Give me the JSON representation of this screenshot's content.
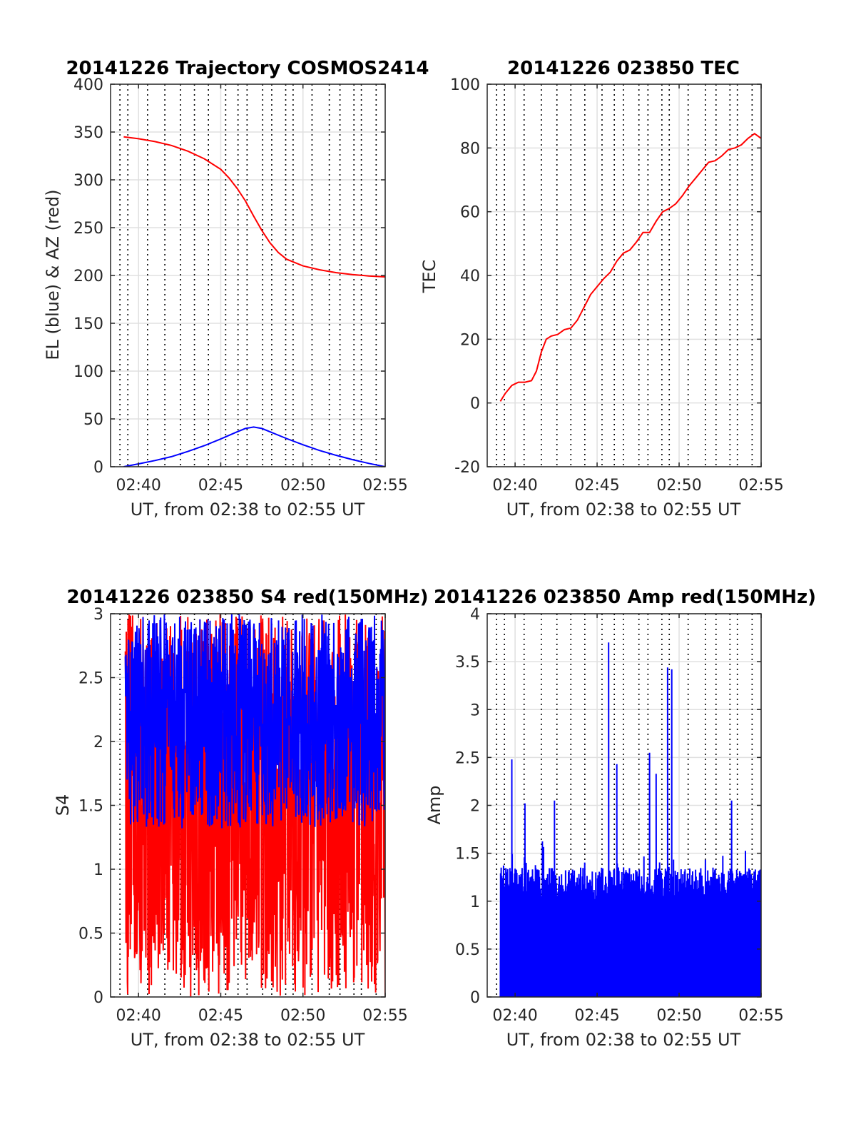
{
  "chart_data": [
    {
      "id": "traj",
      "type": "line",
      "title": "20141226 Trajectory COSMOS2414",
      "xlabel": "UT, from 02:38 to 02:55 UT",
      "ylabel": "EL (blue) & AZ (red)",
      "xlim": [
        38.3,
        55
      ],
      "ylim": [
        0,
        400
      ],
      "xticks": [
        40,
        45,
        50,
        55
      ],
      "xtick_labels": [
        "02:40",
        "02:45",
        "02:50",
        "02:55"
      ],
      "yticks": [
        0,
        50,
        100,
        150,
        200,
        250,
        300,
        350,
        400
      ],
      "ytick_labels": [
        "0",
        "50",
        "100",
        "150",
        "200",
        "250",
        "300",
        "350",
        "400"
      ],
      "grid": true,
      "series": [
        {
          "color": "#ff0000",
          "x": [
            39.1,
            40,
            41,
            42,
            43,
            44,
            45,
            45.5,
            46,
            46.5,
            47,
            47.5,
            48,
            48.5,
            49,
            50,
            51,
            52,
            53,
            54,
            55
          ],
          "y": [
            345,
            343,
            340,
            336,
            330,
            322,
            311,
            302,
            291,
            278,
            262,
            247,
            234,
            224,
            217,
            210,
            206,
            203,
            201,
            199.5,
            198.5
          ]
        },
        {
          "color": "#0000ff",
          "x": [
            39.1,
            40,
            41,
            42,
            43,
            44,
            45,
            46,
            46.5,
            47,
            47.5,
            48,
            49,
            50,
            51,
            52,
            53,
            54,
            55
          ],
          "y": [
            0,
            3,
            6.5,
            10.5,
            16,
            22,
            29,
            36.5,
            40,
            41.5,
            40,
            36.5,
            29.5,
            23,
            17,
            12,
            7.5,
            3.5,
            0
          ]
        }
      ]
    },
    {
      "id": "tec",
      "type": "line",
      "title": "20141226 023850 TEC",
      "xlabel": "UT, from 02:38 to 02:55 UT",
      "ylabel": "TEC",
      "xlim": [
        38.3,
        55
      ],
      "ylim": [
        -20,
        100
      ],
      "xticks": [
        40,
        45,
        50,
        55
      ],
      "xtick_labels": [
        "02:40",
        "02:45",
        "02:50",
        "02:55"
      ],
      "yticks": [
        -20,
        0,
        20,
        40,
        60,
        80,
        100
      ],
      "ytick_labels": [
        "-20",
        "0",
        "20",
        "40",
        "60",
        "80",
        "100"
      ],
      "grid": true,
      "series": [
        {
          "color": "#ff0000",
          "x": [
            39.1,
            39.4,
            39.8,
            40.2,
            40.6,
            41.0,
            41.3,
            41.6,
            41.9,
            42.2,
            42.6,
            43.0,
            43.4,
            43.8,
            44.2,
            44.6,
            45.0,
            45.4,
            45.8,
            46.2,
            46.6,
            47.0,
            47.4,
            47.8,
            48.2,
            48.6,
            49.0,
            49.4,
            49.8,
            50.2,
            50.6,
            51.0,
            51.4,
            51.8,
            52.2,
            52.6,
            53.0,
            53.4,
            53.8,
            54.2,
            54.6,
            55.0
          ],
          "y": [
            0.5,
            3,
            5.5,
            6.5,
            6.5,
            7,
            10,
            16,
            20,
            21,
            21.5,
            23,
            23.5,
            26,
            30,
            34,
            36.5,
            39,
            41,
            44.5,
            47,
            48,
            50.5,
            53.5,
            53.5,
            57,
            60,
            61,
            62.5,
            65,
            68,
            70.5,
            73,
            75.5,
            76,
            77.5,
            79.5,
            80,
            81,
            83,
            84.5,
            83
          ]
        }
      ]
    },
    {
      "id": "s4",
      "type": "line",
      "title": "20141226 023850 S4 red(150MHz)",
      "xlabel": "UT, from 02:38 to 02:55 UT",
      "ylabel": "S4",
      "xlim": [
        38.3,
        55
      ],
      "ylim": [
        0,
        3
      ],
      "xticks": [
        40,
        45,
        50,
        55
      ],
      "xtick_labels": [
        "02:40",
        "02:45",
        "02:50",
        "02:55"
      ],
      "yticks": [
        0,
        0.5,
        1,
        1.5,
        2,
        2.5,
        3
      ],
      "ytick_labels": [
        "0",
        "0.5",
        "1",
        "1.5",
        "2",
        "2.5",
        "3"
      ],
      "grid": true,
      "series": [
        {
          "color": "#ff0000",
          "x_range": [
            39.2,
            55
          ],
          "y_range": [
            0,
            3
          ],
          "shape": "noise"
        },
        {
          "color": "#0000ff",
          "x_range": [
            39.2,
            55
          ],
          "y_range": [
            0.9,
            3
          ],
          "shape": "noise"
        }
      ]
    },
    {
      "id": "amp",
      "type": "line",
      "title": "20141226 023850 Amp red(150MHz)",
      "xlabel": "UT, from 02:38 to 02:55 UT",
      "ylabel": "Amp",
      "xlim": [
        38.3,
        55
      ],
      "ylim": [
        0,
        4
      ],
      "xticks": [
        40,
        45,
        50,
        55
      ],
      "xtick_labels": [
        "02:40",
        "02:45",
        "02:50",
        "02:55"
      ],
      "yticks": [
        0,
        0.5,
        1,
        1.5,
        2,
        2.5,
        3,
        3.5,
        4
      ],
      "ytick_labels": [
        "0",
        "0.5",
        "1",
        "1.5",
        "2",
        "2.5",
        "3",
        "3.5",
        "4"
      ],
      "grid": true,
      "series": [
        {
          "color": "#0000ff",
          "x_range": [
            39.1,
            55
          ],
          "y_range": [
            0,
            1.35
          ],
          "shape": "noise",
          "peaks_x": [
            39.8,
            40.6,
            42.4,
            45.7,
            46.2,
            48.2,
            48.6,
            49.3,
            49.55,
            53.2
          ],
          "peaks_y": [
            2.48,
            2.02,
            2.05,
            3.7,
            2.43,
            2.55,
            2.33,
            3.44,
            3.42,
            2.05
          ]
        }
      ]
    }
  ]
}
